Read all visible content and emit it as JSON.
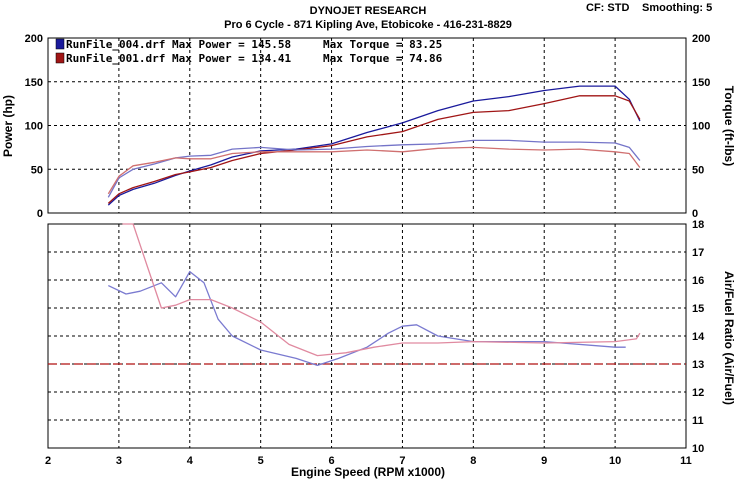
{
  "header": {
    "title": "DYNOJET RESEARCH",
    "subtitle": "Pro 6 Cycle - 871 Kipling Ave, Etobicoke - 416-231-8829",
    "cf_label": "CF: STD",
    "smoothing_label": "Smoothing: 5"
  },
  "chart_data": [
    {
      "type": "line",
      "panel": "power-torque",
      "xlabel": "Engine Speed (RPM x1000)",
      "ylabel": "Power (hp)",
      "ylabel_right": "Torque (ft-lbs)",
      "xlim": [
        2,
        11
      ],
      "ylim": [
        0,
        200
      ],
      "ylim_right": [
        0,
        200
      ],
      "x_ticks": [
        "2",
        "3",
        "4",
        "5",
        "6",
        "7",
        "8",
        "9",
        "10",
        "11"
      ],
      "y_ticks": [
        "0",
        "50",
        "100",
        "150",
        "200"
      ],
      "y_ticks_right": [
        "0",
        "50",
        "100",
        "150",
        "200"
      ],
      "grid": true,
      "legend_position": "top-left",
      "legend": [
        {
          "label": "RunFile_004.drf Max Power = 145.58",
          "torque_label": "Max Torque = 83.25",
          "color": "#1a1a9c"
        },
        {
          "label": "RunFile_001.drf Max Power = 134.41",
          "torque_label": "Max Torque = 74.86",
          "color": "#a01515"
        }
      ],
      "series": [
        {
          "run": "RunFile_004",
          "measure": "power",
          "color": "#1a1a9c",
          "x": [
            2.85,
            3.0,
            3.2,
            3.5,
            3.8,
            4.0,
            4.3,
            4.6,
            5.0,
            5.5,
            6.0,
            6.5,
            7.0,
            7.5,
            8.0,
            8.5,
            9.0,
            9.5,
            10.0,
            10.2,
            10.35
          ],
          "y": [
            9,
            20,
            27,
            34,
            43,
            48,
            55,
            64,
            71,
            73,
            79,
            92,
            103,
            117,
            128,
            133,
            140,
            145,
            145,
            130,
            105
          ]
        },
        {
          "run": "RunFile_001",
          "measure": "power",
          "color": "#a01515",
          "x": [
            2.85,
            3.0,
            3.2,
            3.5,
            3.8,
            4.0,
            4.3,
            4.6,
            5.0,
            5.5,
            6.0,
            6.5,
            7.0,
            7.5,
            8.0,
            8.5,
            9.0,
            9.5,
            10.0,
            10.2,
            10.35
          ],
          "y": [
            11,
            22,
            29,
            36,
            44,
            47,
            52,
            60,
            68,
            72,
            77,
            87,
            93,
            107,
            115,
            117,
            125,
            134,
            134,
            128,
            107
          ]
        },
        {
          "run": "RunFile_004",
          "measure": "torque",
          "color": "#7474c8",
          "x": [
            2.85,
            3.0,
            3.2,
            3.5,
            3.8,
            4.0,
            4.3,
            4.6,
            5.0,
            5.5,
            6.0,
            6.5,
            7.0,
            7.5,
            8.0,
            8.5,
            9.0,
            9.5,
            10.0,
            10.2,
            10.35
          ],
          "y": [
            18,
            40,
            50,
            56,
            63,
            65,
            66,
            73,
            75,
            72,
            73,
            76,
            78,
            79,
            83,
            83,
            81,
            81,
            80,
            75,
            60
          ]
        },
        {
          "run": "RunFile_001",
          "measure": "torque",
          "color": "#d07070",
          "x": [
            2.85,
            3.0,
            3.2,
            3.5,
            3.8,
            4.0,
            4.3,
            4.6,
            5.0,
            5.5,
            6.0,
            6.5,
            7.0,
            7.5,
            8.0,
            8.5,
            9.0,
            9.5,
            10.0,
            10.2,
            10.35
          ],
          "y": [
            22,
            42,
            54,
            58,
            63,
            62,
            62,
            68,
            70,
            70,
            70,
            72,
            70,
            74,
            75,
            73,
            72,
            73,
            70,
            68,
            52
          ]
        }
      ]
    },
    {
      "type": "line",
      "panel": "air-fuel",
      "xlabel": "Engine Speed (RPM x1000)",
      "ylabel_right": "Air/Fuel Ratio (Air/Fuel)",
      "xlim": [
        2,
        11
      ],
      "ylim": [
        10,
        18
      ],
      "y_ticks_right": [
        "10",
        "11",
        "12",
        "13",
        "14",
        "15",
        "16",
        "17",
        "18"
      ],
      "grid": true,
      "reference_line": {
        "y": 13,
        "color": "#b01010"
      },
      "series": [
        {
          "run": "RunFile_004",
          "measure": "air-fuel",
          "color": "#7a7ad0",
          "x": [
            2.85,
            3.1,
            3.3,
            3.6,
            3.8,
            4.0,
            4.2,
            4.4,
            4.6,
            5.0,
            5.5,
            5.8,
            6.1,
            6.5,
            6.8,
            7.0,
            7.2,
            7.5,
            8.0,
            9.0,
            10.0,
            10.15
          ],
          "y": [
            15.8,
            15.5,
            15.6,
            15.9,
            15.4,
            16.3,
            15.9,
            14.6,
            14.0,
            13.5,
            13.2,
            12.95,
            13.2,
            13.6,
            14.1,
            14.35,
            14.4,
            14.0,
            13.8,
            13.8,
            13.6,
            13.6
          ]
        },
        {
          "run": "RunFile_001",
          "measure": "air-fuel",
          "color": "#e08aa0",
          "x": [
            3.05,
            3.2,
            3.4,
            3.6,
            3.8,
            4.0,
            4.3,
            4.6,
            5.0,
            5.4,
            5.8,
            6.2,
            6.6,
            7.0,
            7.5,
            8.0,
            9.0,
            10.0,
            10.3,
            10.35
          ],
          "y": [
            18.0,
            18.0,
            16.5,
            15.0,
            15.1,
            15.3,
            15.3,
            15.0,
            14.5,
            13.7,
            13.3,
            13.4,
            13.6,
            13.75,
            13.75,
            13.8,
            13.75,
            13.8,
            13.9,
            14.1
          ]
        }
      ]
    }
  ]
}
